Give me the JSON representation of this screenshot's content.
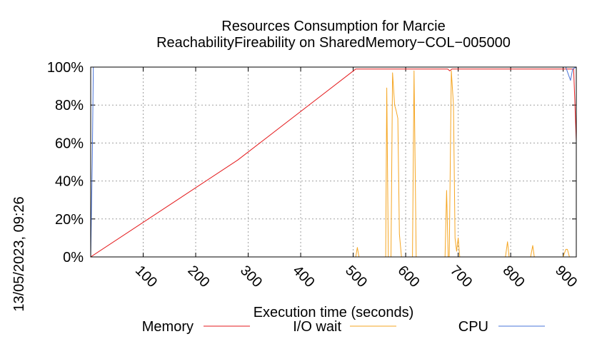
{
  "chart_data": {
    "type": "line",
    "title": "Resources Consumption for Marcie",
    "subtitle": "ReachabilityFireability on SharedMemory−COL−005000",
    "xlabel": "Execution time (seconds)",
    "ylabel": "",
    "timestamp": "13/05/2023, 09:26",
    "xlim": [
      0,
      925
    ],
    "ylim": [
      0,
      100
    ],
    "x_ticks": [
      100,
      200,
      300,
      400,
      500,
      600,
      700,
      800,
      900
    ],
    "y_ticks": [
      0,
      20,
      40,
      60,
      80,
      100
    ],
    "y_tick_labels": [
      "0%",
      "20%",
      "40%",
      "60%",
      "80%",
      "100%"
    ],
    "grid": true,
    "legend_position": "bottom",
    "series": [
      {
        "name": "Memory",
        "color": "#e41a1c",
        "points": [
          [
            0,
            0
          ],
          [
            280,
            51
          ],
          [
            505,
            99
          ],
          [
            510,
            99
          ],
          [
            680,
            99
          ],
          [
            684,
            98
          ],
          [
            688,
            99
          ],
          [
            920,
            99
          ],
          [
            925,
            61
          ]
        ]
      },
      {
        "name": "I/O wait",
        "color": "#f5a623",
        "points": [
          [
            0,
            0
          ],
          [
            505,
            0
          ],
          [
            508,
            5
          ],
          [
            511,
            0
          ],
          [
            562,
            0
          ],
          [
            564,
            89
          ],
          [
            567,
            0
          ],
          [
            572,
            0
          ],
          [
            575,
            97
          ],
          [
            579,
            80
          ],
          [
            582,
            77
          ],
          [
            585,
            73
          ],
          [
            588,
            12
          ],
          [
            592,
            0
          ],
          [
            600,
            0
          ],
          [
            613,
            0
          ],
          [
            616,
            98
          ],
          [
            620,
            0
          ],
          [
            623,
            0
          ],
          [
            675,
            0
          ],
          [
            678,
            35
          ],
          [
            681,
            0
          ],
          [
            683,
            0
          ],
          [
            687,
            98
          ],
          [
            691,
            80
          ],
          [
            694,
            10
          ],
          [
            697,
            3
          ],
          [
            700,
            10
          ],
          [
            703,
            0
          ],
          [
            790,
            0
          ],
          [
            794,
            8
          ],
          [
            797,
            0
          ],
          [
            838,
            0
          ],
          [
            842,
            6
          ],
          [
            845,
            0
          ],
          [
            900,
            0
          ],
          [
            905,
            4
          ],
          [
            908,
            4
          ],
          [
            912,
            0
          ],
          [
            925,
            0
          ]
        ]
      },
      {
        "name": "CPU",
        "color": "#4a74d8",
        "points": [
          [
            0,
            0
          ],
          [
            3,
            50
          ],
          [
            5,
            100
          ],
          [
            905,
            100
          ],
          [
            910,
            96
          ],
          [
            914,
            93
          ],
          [
            918,
            99
          ],
          [
            925,
            100
          ]
        ]
      }
    ]
  }
}
